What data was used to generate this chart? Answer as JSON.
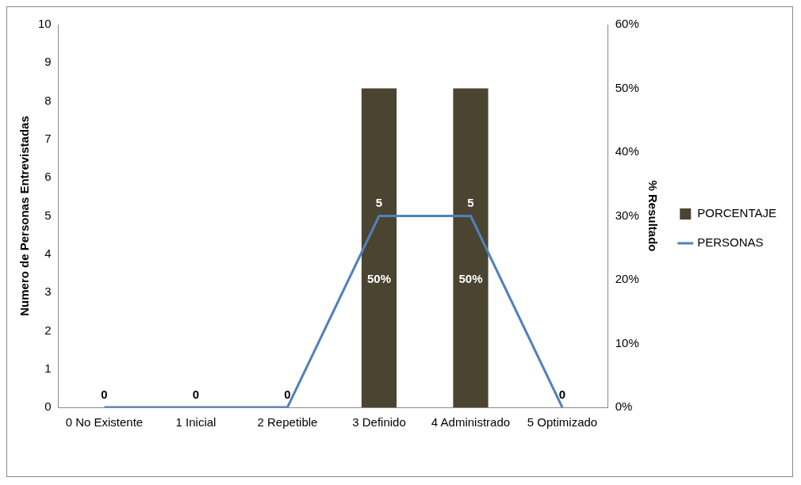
{
  "chart_data": {
    "type": "bar",
    "categories": [
      "0 No Existente",
      "1 Inicial",
      "2 Repetible",
      "3 Definido",
      "4 Administrado",
      "5 Optimizado"
    ],
    "ylabel": "Numero de Personas Entrevistadas",
    "y2label": "% Resultado",
    "series": [
      {
        "name": "PORCENTAJE",
        "axis": "y2",
        "color": "#4a4430",
        "values": [
          0,
          0,
          0,
          50,
          50,
          0
        ],
        "value_labels": [
          null,
          null,
          null,
          "50%",
          "50%",
          null
        ]
      },
      {
        "name": "PERSONAS",
        "type": "line",
        "color": "#4f81bd",
        "values": [
          0,
          0,
          0,
          5,
          5,
          0
        ],
        "value_labels": [
          "0",
          "0",
          "0",
          "5",
          "5",
          "0"
        ]
      }
    ],
    "ylim": [
      0,
      10
    ],
    "yticks": [
      0,
      1,
      2,
      3,
      4,
      5,
      6,
      7,
      8,
      9,
      10
    ],
    "y2lim": [
      0,
      60
    ],
    "y2ticks": [
      {
        "value": 0,
        "label": "0%"
      },
      {
        "value": 10,
        "label": "10%"
      },
      {
        "value": 20,
        "label": "20%"
      },
      {
        "value": 30,
        "label": "30%"
      },
      {
        "value": 40,
        "label": "40%"
      },
      {
        "value": 50,
        "label": "50%"
      },
      {
        "value": 60,
        "label": "60%"
      }
    ],
    "grid": false,
    "legend": "right",
    "marker": "none",
    "line_style": "solid"
  }
}
